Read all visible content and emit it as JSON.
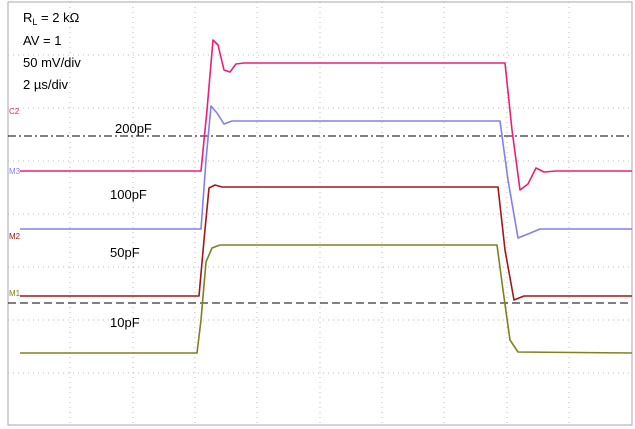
{
  "settings": {
    "r": "R",
    "r_sub": "L",
    "r_rest": " = 2 kΩ",
    "gain": "AV = 1",
    "vertical": "50 mV/div",
    "horizontal": "2 µs/div"
  },
  "channels": [
    "C2",
    "M3",
    "M2",
    "M1"
  ],
  "traces": [
    "200pF",
    "100pF",
    "50pF",
    "10pF"
  ]
}
